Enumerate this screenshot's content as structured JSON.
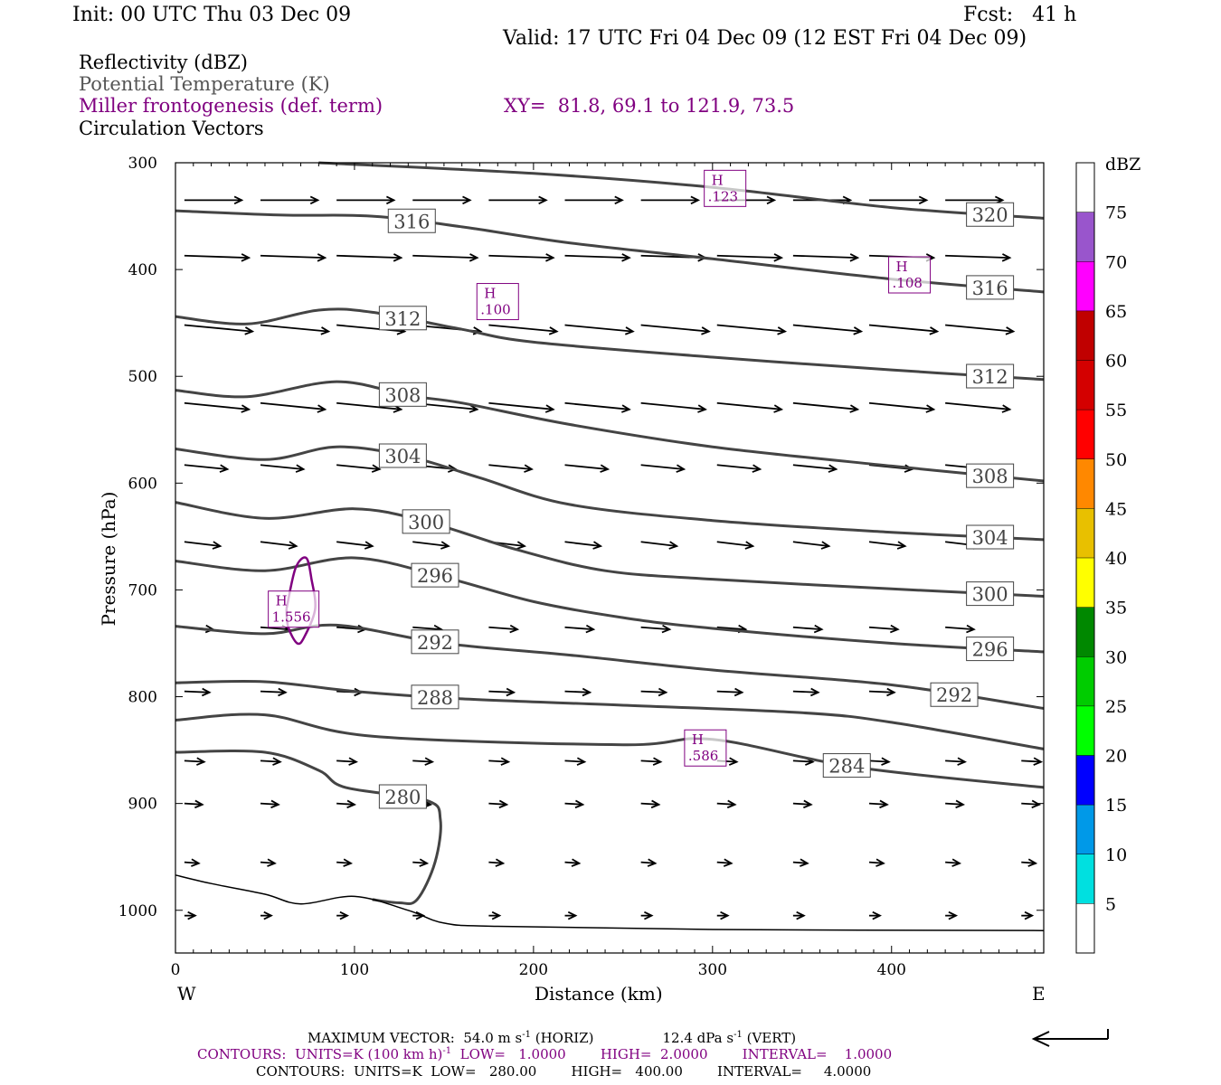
{
  "header": {
    "init": "Init: 00 UTC Thu 03 Dec 09",
    "fcst": "Fcst:   41 h",
    "valid": "Valid: 17 UTC Fri 04 Dec 09 (12 EST Fri 04 Dec 09)",
    "fields": [
      {
        "text": "Reflectivity (dBZ)",
        "color": "#000000"
      },
      {
        "text": "Potential Temperature (K)",
        "color": "#555555"
      },
      {
        "text": "Miller frontogenesis (def. term)",
        "color": "#800080"
      },
      {
        "text": "Circulation Vectors",
        "color": "#000000"
      }
    ],
    "xy": "XY=  81.8, 69.1 to 121.9, 73.5"
  },
  "footer": {
    "line1_left": "MAXIMUM VECTOR:  54.0 m s",
    "line1_sup1": "-1",
    "line1_mid": " (HORIZ)",
    "line1_right": "12.4 dPa s",
    "line1_sup2": "-1",
    "line1_end": " (VERT)",
    "line2": "CONTOURS:  UNITS=K (100 km h)",
    "line2_sup": "-1",
    "line2_rest": "  LOW=   1.0000        HIGH=  2.0000        INTERVAL=    1.0000",
    "line3": "CONTOURS:  UNITS=K  LOW=   280.00        HIGH=   400.00        INTERVAL=     4.0000"
  },
  "chart_data": {
    "type": "cross-section",
    "xlabel": "Distance (km)",
    "ylabel": "Pressure (hPa)",
    "x_left_label": "W",
    "x_right_label": "E",
    "xlim": [
      0,
      485
    ],
    "ylim": [
      1040,
      300
    ],
    "x_ticks": [
      "0",
      "100",
      "200",
      "300",
      "400"
    ],
    "y_ticks": [
      "300",
      "400",
      "500",
      "600",
      "700",
      "800",
      "900",
      "1000"
    ],
    "theta_contours": [
      {
        "value": "320",
        "label_x": 455,
        "points": [
          [
            80,
            300
          ],
          [
            200,
            310
          ],
          [
            300,
            323
          ],
          [
            400,
            342
          ],
          [
            485,
            352
          ]
        ]
      },
      {
        "value": "316",
        "label_x": 132,
        "points": [
          [
            0,
            345
          ],
          [
            60,
            349
          ],
          [
            110,
            350
          ],
          [
            160,
            360
          ],
          [
            220,
            375
          ],
          [
            300,
            390
          ],
          [
            400,
            409
          ],
          [
            485,
            421
          ]
        ]
      },
      {
        "value": "316",
        "label_x": 455,
        "points": []
      },
      {
        "value": "312",
        "label_x": 127,
        "points": [
          [
            0,
            444
          ],
          [
            40,
            451
          ],
          [
            80,
            438
          ],
          [
            110,
            440
          ],
          [
            160,
            456
          ],
          [
            200,
            468
          ],
          [
            300,
            482
          ],
          [
            400,
            494
          ],
          [
            485,
            503
          ]
        ]
      },
      {
        "value": "312",
        "label_x": 455,
        "points": []
      },
      {
        "value": "308",
        "label_x": 127,
        "points": [
          [
            0,
            513
          ],
          [
            40,
            519
          ],
          [
            90,
            505
          ],
          [
            130,
            518
          ],
          [
            160,
            525
          ],
          [
            220,
            545
          ],
          [
            300,
            566
          ],
          [
            400,
            584
          ],
          [
            485,
            598
          ]
        ]
      },
      {
        "value": "308",
        "label_x": 455,
        "points": []
      },
      {
        "value": "304",
        "label_x": 127,
        "points": [
          [
            0,
            568
          ],
          [
            50,
            578
          ],
          [
            90,
            566
          ],
          [
            130,
            575
          ],
          [
            170,
            595
          ],
          [
            220,
            620
          ],
          [
            300,
            635
          ],
          [
            400,
            646
          ],
          [
            485,
            653
          ]
        ]
      },
      {
        "value": "304",
        "label_x": 455,
        "points": []
      },
      {
        "value": "300",
        "label_x": 140,
        "points": [
          [
            0,
            618
          ],
          [
            50,
            633
          ],
          [
            100,
            624
          ],
          [
            140,
            636
          ],
          [
            190,
            662
          ],
          [
            240,
            682
          ],
          [
            300,
            690
          ],
          [
            400,
            699
          ],
          [
            485,
            706
          ]
        ]
      },
      {
        "value": "300",
        "label_x": 455,
        "points": []
      },
      {
        "value": "296",
        "label_x": 145,
        "points": [
          [
            0,
            673
          ],
          [
            50,
            682
          ],
          [
            100,
            670
          ],
          [
            150,
            688
          ],
          [
            200,
            711
          ],
          [
            250,
            726
          ],
          [
            300,
            736
          ],
          [
            400,
            750
          ],
          [
            485,
            758
          ]
        ]
      },
      {
        "value": "296",
        "label_x": 455,
        "points": []
      },
      {
        "value": "292",
        "label_x": 145,
        "points": [
          [
            0,
            734
          ],
          [
            50,
            741
          ],
          [
            90,
            733
          ],
          [
            150,
            750
          ],
          [
            220,
            761
          ],
          [
            300,
            775
          ],
          [
            400,
            789
          ],
          [
            485,
            811
          ]
        ]
      },
      {
        "value": "292",
        "label_x": 435,
        "points": []
      },
      {
        "value": "288",
        "label_x": 145,
        "points": [
          [
            0,
            787
          ],
          [
            50,
            786
          ],
          [
            100,
            795
          ],
          [
            160,
            802
          ],
          [
            250,
            808
          ],
          [
            350,
            815
          ],
          [
            400,
            824
          ],
          [
            485,
            849
          ]
        ]
      },
      {
        "value": "284",
        "label_x": 375,
        "points": [
          [
            0,
            822
          ],
          [
            50,
            817
          ],
          [
            110,
            837
          ],
          [
            250,
            845
          ],
          [
            300,
            840
          ],
          [
            380,
            866
          ],
          [
            485,
            885
          ]
        ]
      },
      {
        "value": "280",
        "label_x": 127,
        "points": [
          [
            0,
            852
          ],
          [
            50,
            852
          ],
          [
            80,
            869
          ],
          [
            95,
            885
          ],
          [
            140,
            897
          ],
          [
            148,
            915
          ],
          [
            145,
            955
          ],
          [
            135,
            990
          ],
          [
            125,
            993
          ],
          [
            110,
            990
          ]
        ]
      }
    ],
    "surface_line": [
      [
        0,
        967
      ],
      [
        20,
        975
      ],
      [
        50,
        985
      ],
      [
        70,
        994
      ],
      [
        100,
        987
      ],
      [
        130,
        1000
      ],
      [
        150,
        1012
      ],
      [
        180,
        1015
      ],
      [
        300,
        1018
      ],
      [
        485,
        1019
      ]
    ],
    "frontogenesis_highs": [
      {
        "label": "H",
        "value": ".123",
        "x": 307,
        "p": 324
      },
      {
        "label": "H",
        "value": ".108",
        "x": 410,
        "p": 405
      },
      {
        "label": "H",
        "value": ".100",
        "x": 180,
        "p": 430
      },
      {
        "label": "H",
        "value": "1.556",
        "x": 66,
        "p": 718
      },
      {
        "label": "H",
        "value": ".586",
        "x": 296,
        "p": 848
      }
    ],
    "frontogenesis_contour": [
      [
        62,
        718
      ],
      [
        67,
        680
      ],
      [
        73,
        670
      ],
      [
        76,
        690
      ],
      [
        78,
        718
      ],
      [
        72,
        744
      ],
      [
        68,
        750
      ],
      [
        63,
        735
      ],
      [
        62,
        718
      ]
    ],
    "vector_rows": [
      {
        "p": 335,
        "len_km": 32,
        "dp": 0
      },
      {
        "p": 387,
        "len_km": 36,
        "dp": 2
      },
      {
        "p": 452,
        "len_km": 38,
        "dp": 6
      },
      {
        "p": 525,
        "len_km": 36,
        "dp": 6
      },
      {
        "p": 583,
        "len_km": 24,
        "dp": 4
      },
      {
        "p": 655,
        "len_km": 20,
        "dp": 4
      },
      {
        "p": 735,
        "len_km": 16,
        "dp": 2
      },
      {
        "p": 795,
        "len_km": 14,
        "dp": 1
      },
      {
        "p": 860,
        "len_km": 11,
        "dp": 1
      },
      {
        "p": 900,
        "len_km": 10,
        "dp": 1
      },
      {
        "p": 955,
        "len_km": 8,
        "dp": 1
      },
      {
        "p": 1005,
        "len_km": 6,
        "dp": 0
      }
    ],
    "colorbar": {
      "unit": "dBZ",
      "levels": [
        "5",
        "10",
        "15",
        "20",
        "25",
        "30",
        "35",
        "40",
        "45",
        "50",
        "55",
        "60",
        "65",
        "70",
        "75"
      ],
      "colors": [
        "#00E0E0",
        "#0099E8",
        "#0000FF",
        "#00FF00",
        "#00CC00",
        "#008800",
        "#FFFF00",
        "#E8C000",
        "#FF8800",
        "#FF0000",
        "#D40000",
        "#C00000",
        "#FF00FF",
        "#9955CC"
      ]
    },
    "reference_vector": "arrow"
  }
}
